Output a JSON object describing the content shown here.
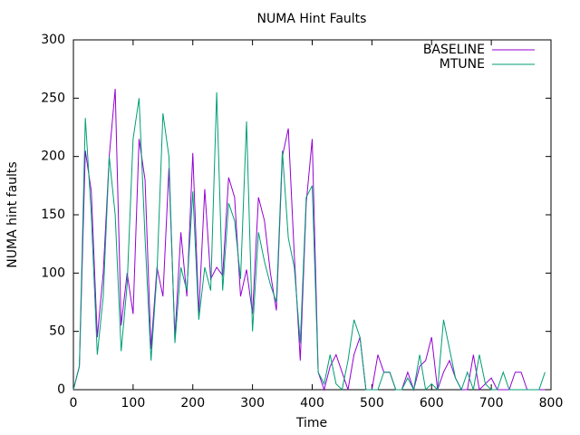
{
  "chart_data": {
    "type": "line",
    "title": "NUMA Hint Faults",
    "xlabel": "Time",
    "ylabel": "NUMA hint faults",
    "x": [
      0,
      10,
      20,
      30,
      40,
      50,
      60,
      70,
      80,
      90,
      100,
      110,
      120,
      130,
      140,
      150,
      160,
      170,
      180,
      190,
      200,
      210,
      220,
      230,
      240,
      250,
      260,
      270,
      280,
      290,
      300,
      310,
      320,
      330,
      340,
      350,
      360,
      370,
      380,
      390,
      400,
      410,
      420,
      430,
      440,
      450,
      460,
      470,
      480,
      490,
      500,
      510,
      520,
      530,
      540,
      550,
      560,
      570,
      580,
      590,
      600,
      610,
      620,
      630,
      640,
      650,
      660,
      670,
      680,
      690,
      700,
      710,
      720,
      730,
      740,
      750,
      760,
      770,
      780,
      790
    ],
    "series": [
      {
        "name": "BASELINE",
        "color": "#9400d3",
        "values": [
          0,
          20,
          205,
          170,
          45,
          100,
          200,
          258,
          55,
          100,
          65,
          215,
          180,
          35,
          105,
          80,
          190,
          45,
          135,
          80,
          203,
          65,
          172,
          95,
          105,
          98,
          182,
          165,
          80,
          103,
          65,
          165,
          145,
          100,
          68,
          200,
          224,
          115,
          25,
          160,
          215,
          15,
          0,
          20,
          30,
          15,
          0,
          30,
          45,
          0,
          0,
          30,
          15,
          15,
          0,
          0,
          15,
          0,
          20,
          25,
          45,
          0,
          15,
          25,
          10,
          0,
          0,
          30,
          0,
          5,
          10,
          0,
          0,
          0,
          15,
          15,
          0,
          0,
          0,
          0
        ]
      },
      {
        "name": "MTUNE",
        "color": "#009e73",
        "values": [
          0,
          20,
          233,
          150,
          30,
          80,
          200,
          150,
          33,
          90,
          215,
          250,
          130,
          25,
          100,
          237,
          200,
          40,
          105,
          85,
          170,
          60,
          105,
          85,
          255,
          85,
          160,
          145,
          95,
          230,
          50,
          135,
          110,
          90,
          75,
          205,
          130,
          105,
          40,
          165,
          175,
          15,
          5,
          30,
          5,
          0,
          25,
          60,
          45,
          0,
          0,
          0,
          15,
          15,
          0,
          0,
          10,
          0,
          30,
          0,
          5,
          0,
          60,
          35,
          10,
          0,
          15,
          0,
          30,
          5,
          0,
          0,
          15,
          0,
          0,
          0,
          0,
          0,
          0,
          15
        ]
      }
    ],
    "xlim": [
      0,
      800
    ],
    "xticks": [
      0,
      100,
      200,
      300,
      400,
      500,
      600,
      700,
      800
    ],
    "ylim": [
      0,
      300
    ],
    "yticks": [
      0,
      50,
      100,
      150,
      200,
      250,
      300
    ],
    "grid": false,
    "legend": "top-right"
  }
}
